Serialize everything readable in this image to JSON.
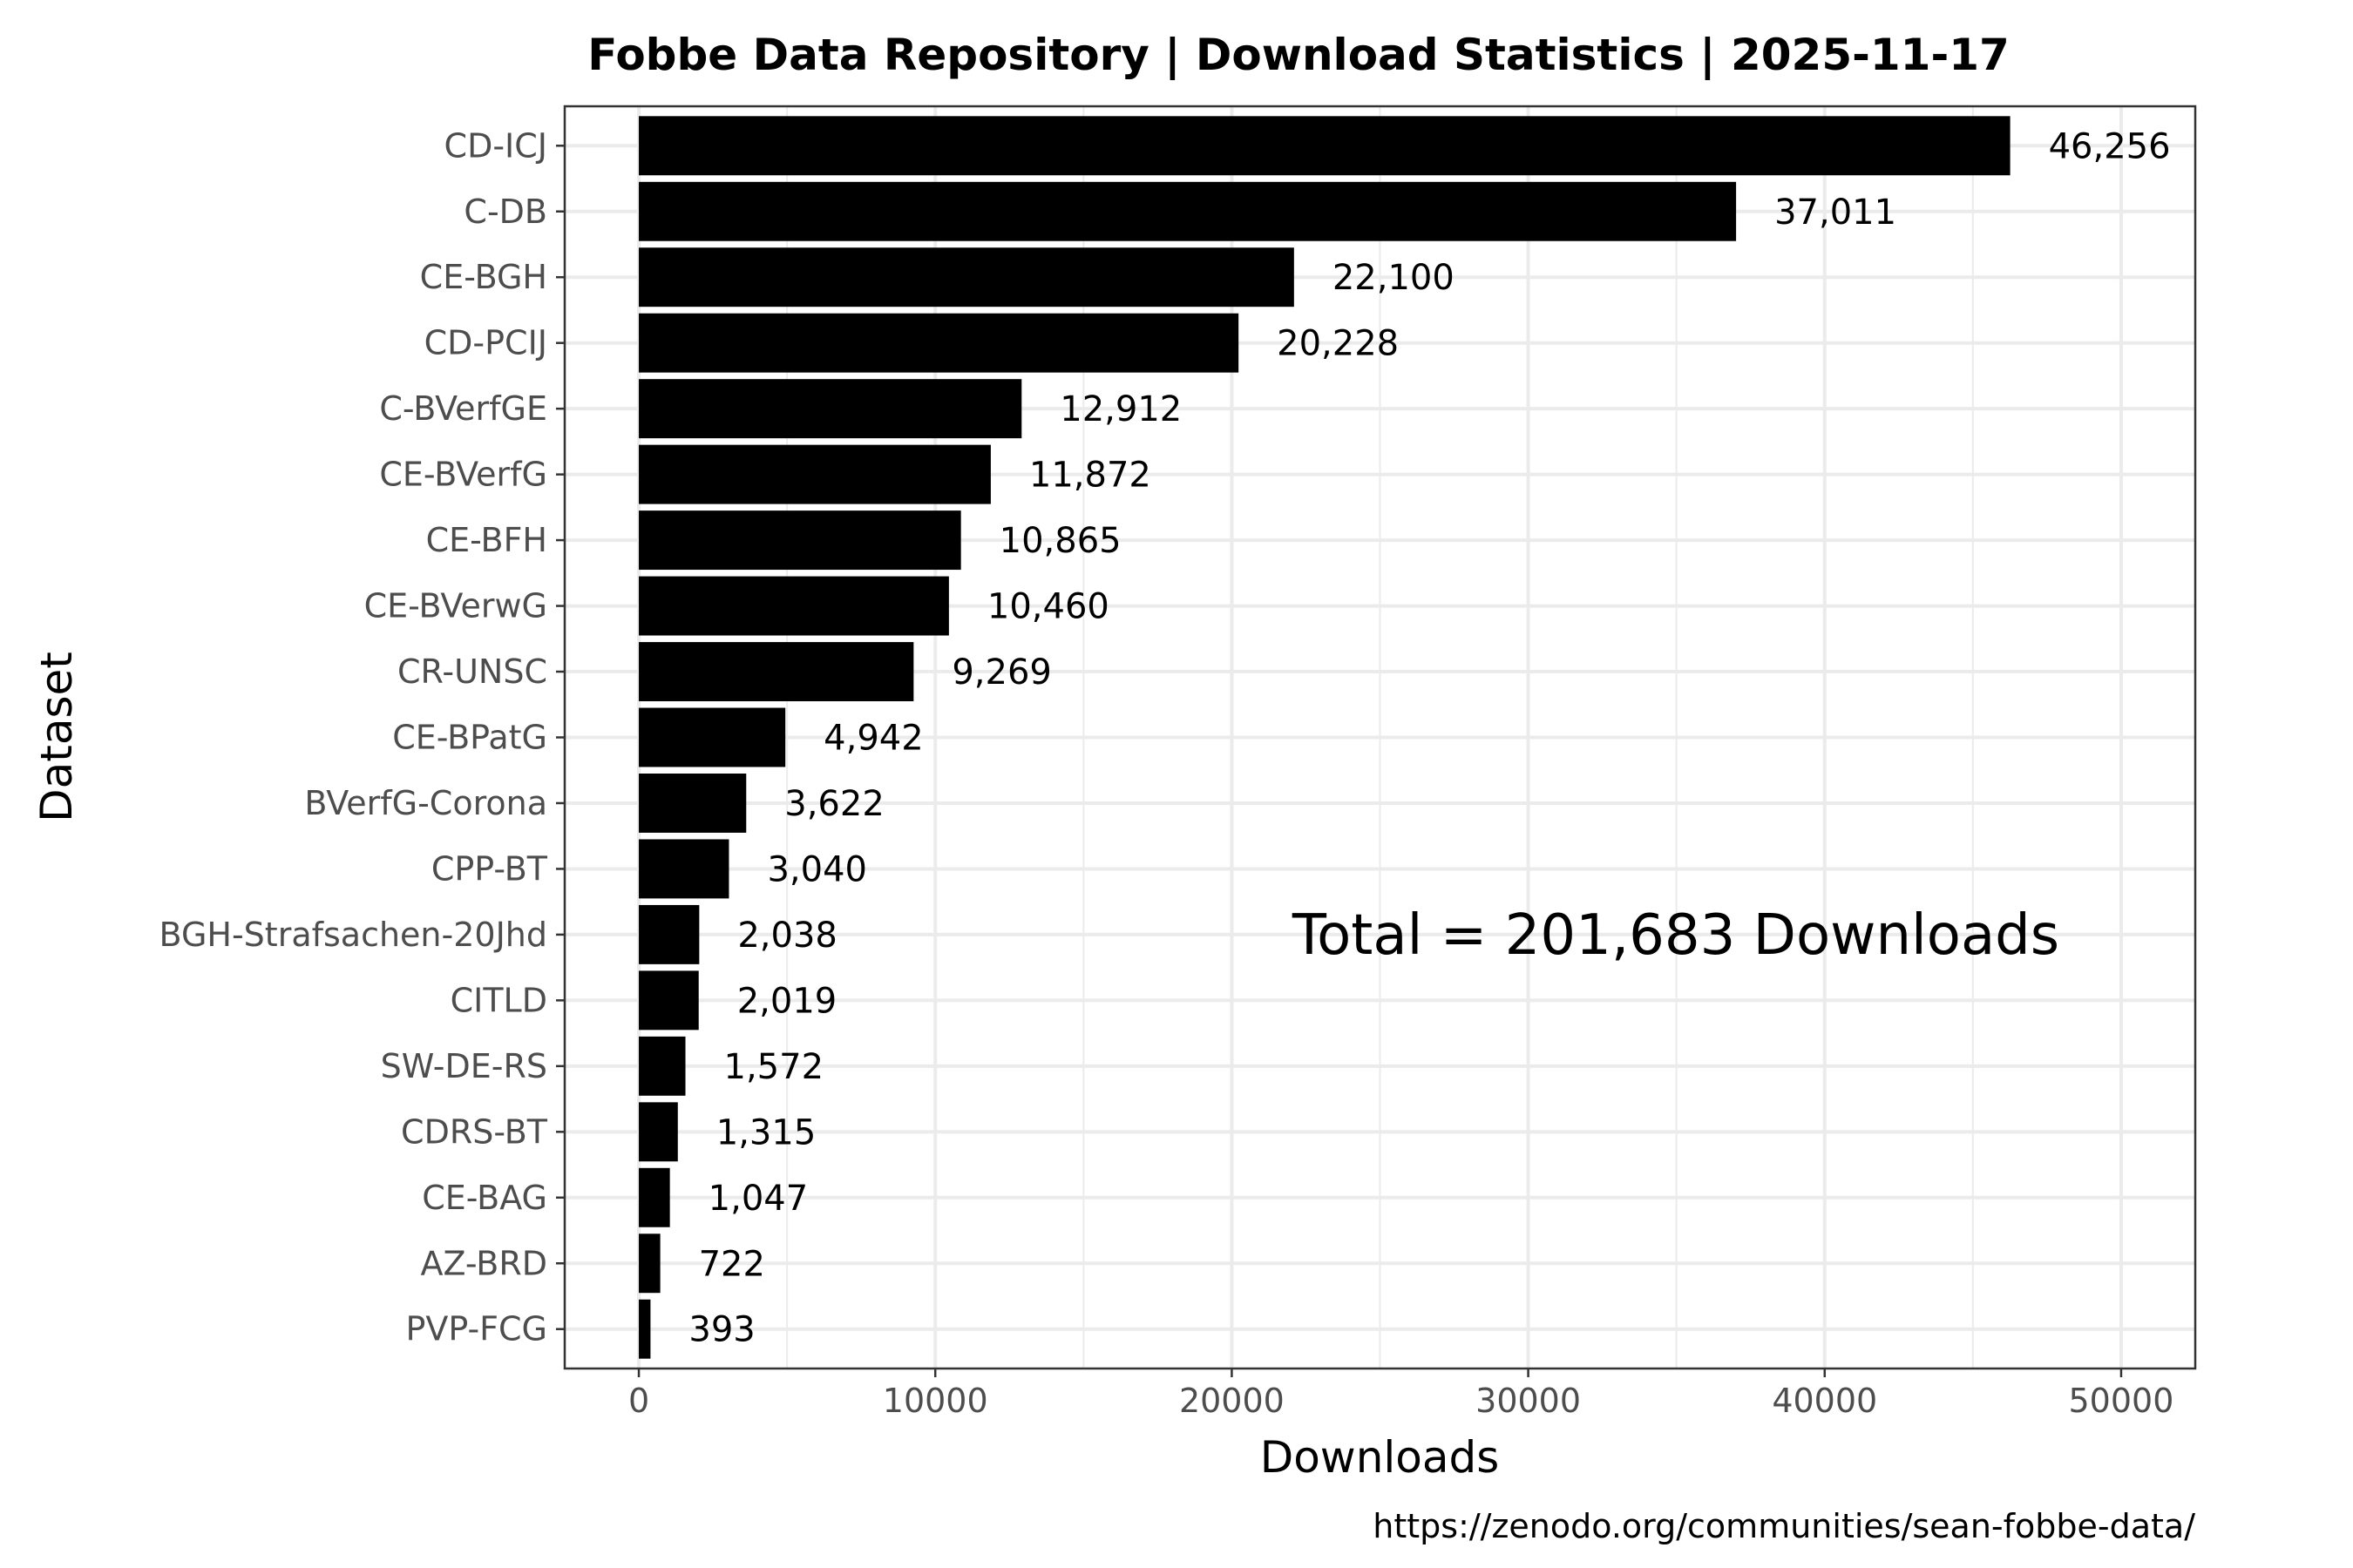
{
  "chart_data": {
    "type": "bar",
    "orientation": "horizontal",
    "title": "Fobbe Data Repository | Download Statistics | 2025-11-17",
    "xlabel": "Downloads",
    "ylabel": "Dataset",
    "caption": "https://zenodo.org/communities/sean-fobbe-data/",
    "annotation": "Total = 201,683 Downloads",
    "xlim": [
      -2500,
      52500
    ],
    "xticks": [
      0,
      10000,
      20000,
      30000,
      40000,
      50000
    ],
    "xtick_labels": [
      "0",
      "10000",
      "20000",
      "30000",
      "40000",
      "50000"
    ],
    "grid": true,
    "bar_color": "#000000",
    "categories": [
      "CD-ICJ",
      "C-DB",
      "CE-BGH",
      "CD-PCIJ",
      "C-BVerfGE",
      "CE-BVerfG",
      "CE-BFH",
      "CE-BVerwG",
      "CR-UNSC",
      "CE-BPatG",
      "BVerfG-Corona",
      "CPP-BT",
      "BGH-Strafsachen-20Jhd",
      "CITLD",
      "SW-DE-RS",
      "CDRS-BT",
      "CE-BAG",
      "AZ-BRD",
      "PVP-FCG"
    ],
    "values": [
      46256,
      37011,
      22100,
      20228,
      12912,
      11872,
      10865,
      10460,
      9269,
      4942,
      3622,
      3040,
      2038,
      2019,
      1572,
      1315,
      1047,
      722,
      393
    ],
    "value_labels": [
      "46,256",
      "37,011",
      "22,100",
      "20,228",
      "12,912",
      "11,872",
      "10,865",
      "10,460",
      "9,269",
      "4,942",
      "3,622",
      "3,040",
      "2,038",
      "2,019",
      "1,572",
      "1,315",
      "1,047",
      "722",
      "393"
    ]
  }
}
